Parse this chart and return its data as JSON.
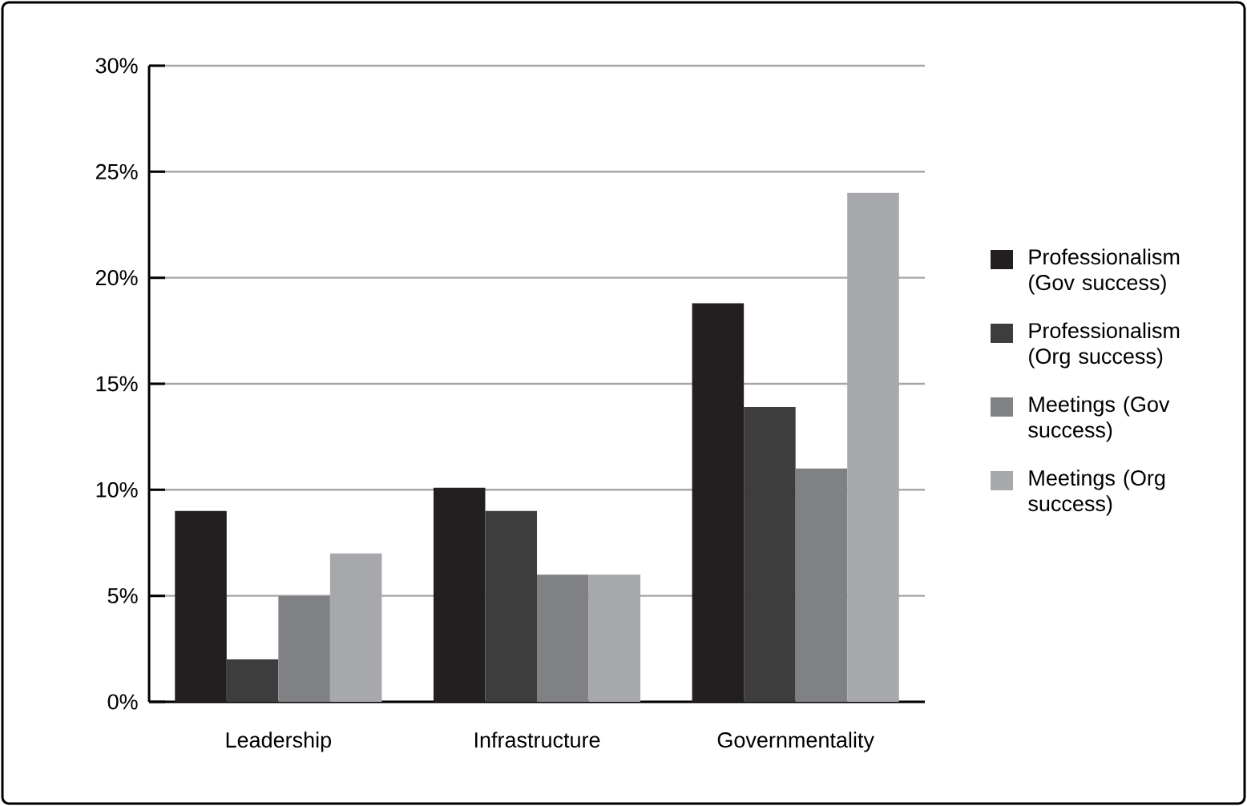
{
  "chart_data": {
    "type": "bar",
    "categories": [
      "Leadership",
      "Infrastructure",
      "Governmentality"
    ],
    "series": [
      {
        "name": "Professionalism (Gov success)",
        "color": "#231f20",
        "values": [
          9,
          10.1,
          18.8
        ]
      },
      {
        "name": "Professionalism (Org success)",
        "color": "#3d3d3d",
        "values": [
          2,
          9,
          13.9
        ]
      },
      {
        "name": "Meetings (Gov success)",
        "color": "#808184",
        "values": [
          5,
          6,
          11
        ]
      },
      {
        "name": "Meetings (Org success)",
        "color": "#a7a8ab",
        "values": [
          7,
          6,
          24
        ]
      }
    ],
    "ylim": [
      0,
      30
    ],
    "yticks": [
      {
        "value": 0,
        "label": "0%"
      },
      {
        "value": 5,
        "label": "5%"
      },
      {
        "value": 10,
        "label": "10%"
      },
      {
        "value": 15,
        "label": "15%"
      },
      {
        "value": 20,
        "label": "20%"
      },
      {
        "value": 25,
        "label": "25%"
      },
      {
        "value": 30,
        "label": "30%"
      }
    ],
    "grid": "y",
    "legend": "right"
  }
}
